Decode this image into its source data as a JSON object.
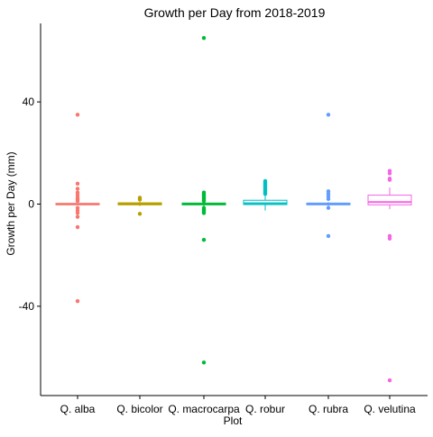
{
  "chart_data": {
    "type": "box",
    "title": "Growth per Day from 2018-2019",
    "xlabel": "Plot",
    "ylabel": "Growth per Day (mm)",
    "ylim": [
      -75,
      68
    ],
    "yticks": [
      -40,
      0,
      40
    ],
    "grid": false,
    "legend": "none",
    "categories": [
      "Q. alba",
      "Q. bicolor",
      "Q. macrocarpa",
      "Q. robur",
      "Q. rubra",
      "Q. velutina"
    ],
    "colors": [
      "#F8766D",
      "#B79F00",
      "#00BA38",
      "#00BFC4",
      "#619CFF",
      "#F564E3"
    ],
    "boxes": [
      {
        "q1": -0.3,
        "median": 0.0,
        "q3": 0.3,
        "whisker_low": -0.3,
        "whisker_high": 0.3,
        "outliers": [
          35,
          8,
          6,
          4.5,
          3.5,
          2.5,
          1.8,
          1.2,
          -1.5,
          -2.5,
          -3.5,
          -5,
          -9,
          -38
        ]
      },
      {
        "q1": -0.3,
        "median": 0.1,
        "q3": 0.5,
        "whisker_low": -0.8,
        "whisker_high": 1.0,
        "outliers": [
          2.5,
          1.8,
          -3.8
        ]
      },
      {
        "q1": -0.3,
        "median": 0.0,
        "q3": 0.4,
        "whisker_low": -0.8,
        "whisker_high": 0.8,
        "outliers": [
          65,
          4.5,
          4,
          3.5,
          3,
          2.5,
          2,
          1.5,
          1.2,
          -1.5,
          -2,
          -2.5,
          -3,
          -3.5,
          -14,
          -62
        ]
      },
      {
        "q1": -0.2,
        "median": 0.3,
        "q3": 1.5,
        "whisker_low": -2.5,
        "whisker_high": 3.5,
        "outliers": [
          9,
          8.5,
          8,
          7.5,
          7,
          6.5,
          6,
          5.5,
          5,
          4.5,
          4
        ]
      },
      {
        "q1": -0.3,
        "median": 0.0,
        "q3": 0.4,
        "whisker_low": -0.8,
        "whisker_high": 0.8,
        "outliers": [
          35,
          5,
          4,
          3,
          2,
          -1.5,
          -12.5
        ]
      },
      {
        "q1": -0.3,
        "median": 0.8,
        "q3": 3.5,
        "whisker_low": -2.0,
        "whisker_high": 6.5,
        "outliers": [
          13,
          12,
          10,
          9.5,
          -12.5,
          -13.5,
          -69
        ]
      }
    ]
  }
}
